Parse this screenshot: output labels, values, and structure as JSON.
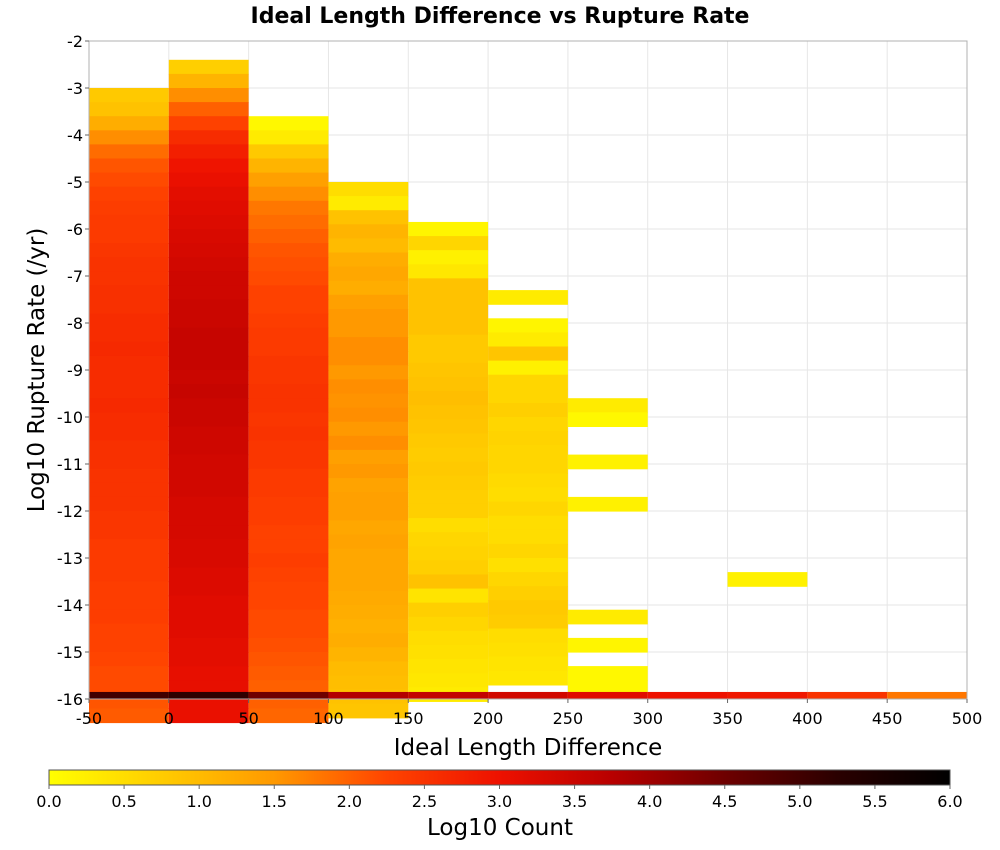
{
  "chart_data": {
    "type": "heatmap",
    "title": "Ideal Length Difference vs Rupture Rate",
    "xlabel": "Ideal Length Difference",
    "ylabel": "Log10 Rupture Rate (/yr)",
    "xlim": [
      -50,
      500
    ],
    "ylim": [
      -16,
      -2
    ],
    "x_ticks": [
      "-50",
      "0",
      "50",
      "100",
      "150",
      "200",
      "250",
      "300",
      "350",
      "400",
      "450",
      "500"
    ],
    "y_ticks": [
      "-2",
      "-3",
      "-4",
      "-5",
      "-6",
      "-7",
      "-8",
      "-9",
      "-10",
      "-11",
      "-12",
      "-13",
      "-14",
      "-15",
      "-16"
    ],
    "grid": true,
    "colorbar": {
      "label": "Log10 Count",
      "range": [
        0.0,
        6.0
      ],
      "ticks": [
        "0.0",
        "0.5",
        "1.0",
        "1.5",
        "2.0",
        "2.5",
        "3.0",
        "3.5",
        "4.0",
        "4.5",
        "5.0",
        "5.5",
        "6.0"
      ],
      "colormap": [
        "#ffff00",
        "#ffcc00",
        "#ff9900",
        "#ff4400",
        "#ee1100",
        "#b80000",
        "#6e0000",
        "#2a0000",
        "#000000"
      ]
    },
    "x_bin_width": 50,
    "y_bin_height": 0.3,
    "columns": [
      {
        "x": -25,
        "y_top": -3.0,
        "values": [
          0.8,
          0.9,
          1.2,
          1.6,
          1.9,
          2.1,
          2.2,
          2.3,
          2.35,
          2.4,
          2.4,
          2.45,
          2.5,
          2.5,
          2.55,
          2.55,
          2.6,
          2.6,
          2.65,
          2.6,
          2.6,
          2.6,
          2.65,
          2.6,
          2.6,
          2.55,
          2.55,
          2.5,
          2.5,
          2.5,
          2.45,
          2.45,
          2.4,
          2.4,
          2.4,
          2.35,
          2.35,
          2.35,
          2.3,
          2.3,
          2.25,
          2.2,
          2.2,
          2.1,
          2.05
        ]
      },
      {
        "x": 25,
        "y_top": -2.4,
        "values": [
          0.7,
          1.1,
          1.6,
          2.0,
          2.3,
          2.6,
          2.8,
          2.95,
          3.05,
          3.15,
          3.2,
          3.25,
          3.3,
          3.35,
          3.4,
          3.45,
          3.45,
          3.5,
          3.5,
          3.55,
          3.55,
          3.55,
          3.5,
          3.55,
          3.5,
          3.5,
          3.45,
          3.45,
          3.4,
          3.4,
          3.4,
          3.35,
          3.35,
          3.35,
          3.3,
          3.3,
          3.25,
          3.25,
          3.2,
          3.2,
          3.2,
          3.15,
          3.15,
          3.1,
          3.1,
          3.05,
          3.05
        ]
      },
      {
        "x": 75,
        "y_top": -3.6,
        "values": [
          0.1,
          0.3,
          0.8,
          1.1,
          1.4,
          1.6,
          1.8,
          1.9,
          2.0,
          2.1,
          2.15,
          2.2,
          2.3,
          2.3,
          2.35,
          2.4,
          2.4,
          2.45,
          2.45,
          2.5,
          2.5,
          2.45,
          2.5,
          2.45,
          2.45,
          2.4,
          2.4,
          2.35,
          2.35,
          2.3,
          2.3,
          2.35,
          2.3,
          2.25,
          2.25,
          2.2,
          2.2,
          2.15,
          2.1,
          2.05,
          2.0,
          2.0,
          1.95
        ]
      },
      {
        "x": 125,
        "y_top": -5.0,
        "values": [
          0.5,
          0.3,
          0.9,
          1.1,
          1.0,
          1.2,
          1.3,
          1.2,
          1.4,
          1.5,
          1.5,
          1.6,
          1.6,
          1.5,
          1.6,
          1.55,
          1.6,
          1.5,
          1.6,
          1.4,
          1.5,
          1.35,
          1.4,
          1.4,
          1.3,
          1.35,
          1.3,
          1.3,
          1.3,
          1.25,
          1.2,
          1.15,
          1.2,
          1.1,
          1.0,
          0.95,
          0.9,
          0.85
        ]
      },
      {
        "x": 175,
        "y_top": -5.85,
        "values": [
          0.15,
          0.6,
          0.2,
          0.35,
          0.9,
          0.9,
          0.9,
          0.9,
          0.8,
          0.8,
          0.85,
          0.9,
          0.95,
          0.9,
          0.85,
          0.8,
          0.75,
          0.8,
          0.75,
          0.7,
          0.7,
          0.5,
          0.6,
          0.65,
          0.7,
          0.9,
          0.4,
          0.7,
          0.6,
          0.5,
          0.45,
          0.4,
          0.35,
          0.3
        ]
      },
      {
        "x": 225,
        "y_top": -7.3,
        "values": [
          0.3,
          null,
          0.15,
          0.3,
          0.85,
          0.2,
          0.6,
          0.6,
          0.7,
          0.6,
          0.65,
          0.6,
          0.6,
          0.55,
          0.5,
          0.6,
          0.5,
          0.5,
          0.6,
          0.45,
          0.6,
          0.7,
          0.8,
          0.75,
          0.5,
          0.45,
          0.4,
          0.35
        ]
      },
      {
        "x": 275,
        "y_top": -9.6,
        "values": [
          0.3,
          0.1,
          null,
          null,
          0.2,
          null,
          null,
          0.2,
          null,
          null,
          null,
          null,
          null,
          null,
          null,
          0.3,
          null,
          0.15,
          null,
          0.1,
          0.1
        ]
      },
      {
        "x": 375,
        "y_top": -13.3,
        "values": [
          0.2
        ]
      }
    ],
    "bottom_row": {
      "y_bottom": -16,
      "height": 0.15,
      "cells": [
        {
          "x": -25,
          "value": 5.0
        },
        {
          "x": 25,
          "value": 5.2
        },
        {
          "x": 75,
          "value": 4.5
        },
        {
          "x": 125,
          "value": 3.8
        },
        {
          "x": 175,
          "value": 3.6
        },
        {
          "x": 225,
          "value": 3.4
        },
        {
          "x": 275,
          "value": 3.2
        },
        {
          "x": 325,
          "value": 3.0
        },
        {
          "x": 375,
          "value": 2.9
        },
        {
          "x": 425,
          "value": 2.5
        },
        {
          "x": 475,
          "value": 1.8
        }
      ]
    }
  }
}
